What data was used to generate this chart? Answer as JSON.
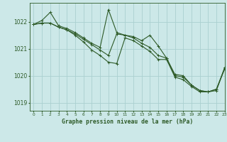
{
  "title": "Graphe pression niveau de la mer (hPa)",
  "background_color": "#cce8e8",
  "grid_color": "#aad0d0",
  "line_color": "#2d5a27",
  "xlim": [
    -0.5,
    23
  ],
  "ylim": [
    1018.7,
    1022.7
  ],
  "yticks": [
    1019,
    1020,
    1021,
    1022
  ],
  "xticks": [
    0,
    1,
    2,
    3,
    4,
    5,
    6,
    7,
    8,
    9,
    10,
    11,
    12,
    13,
    14,
    15,
    16,
    17,
    18,
    19,
    20,
    21,
    22,
    23
  ],
  "series": [
    {
      "x": [
        0,
        1,
        2,
        3,
        4,
        5,
        6,
        7,
        8,
        9,
        10,
        11,
        12,
        13,
        14,
        15,
        16,
        17,
        18,
        19,
        20,
        21,
        22,
        23
      ],
      "y": [
        1021.9,
        1021.95,
        1021.95,
        1021.8,
        1021.7,
        1021.55,
        1021.35,
        1021.15,
        1020.95,
        1020.75,
        1021.55,
        1021.5,
        1021.4,
        1021.2,
        1021.05,
        1020.75,
        1020.65,
        1020.0,
        1019.95,
        1019.65,
        1019.45,
        1019.4,
        1019.45,
        1020.3
      ]
    },
    {
      "x": [
        0,
        1,
        2,
        3,
        4,
        5,
        6,
        7,
        8,
        9,
        10,
        11,
        12,
        13,
        14,
        15,
        16,
        17,
        18,
        19,
        20,
        21,
        22,
        23
      ],
      "y": [
        1021.9,
        1022.05,
        1022.35,
        1021.85,
        1021.75,
        1021.6,
        1021.4,
        1021.2,
        1021.05,
        1022.45,
        1021.6,
        1021.5,
        1021.45,
        1021.3,
        1021.5,
        1021.1,
        1020.65,
        1020.05,
        1020.0,
        1019.65,
        1019.45,
        1019.4,
        1019.5,
        1020.3
      ]
    },
    {
      "x": [
        0,
        1,
        2,
        3,
        4,
        5,
        6,
        7,
        8,
        9,
        10,
        11,
        12,
        13,
        14,
        15,
        16,
        17,
        18,
        19,
        20,
        21,
        22,
        23
      ],
      "y": [
        1021.9,
        1021.95,
        1021.95,
        1021.8,
        1021.7,
        1021.5,
        1021.25,
        1020.95,
        1020.75,
        1020.5,
        1020.45,
        1021.4,
        1021.3,
        1021.1,
        1020.9,
        1020.6,
        1020.6,
        1019.95,
        1019.85,
        1019.6,
        1019.4,
        1019.4,
        1019.5,
        1020.25
      ]
    }
  ]
}
